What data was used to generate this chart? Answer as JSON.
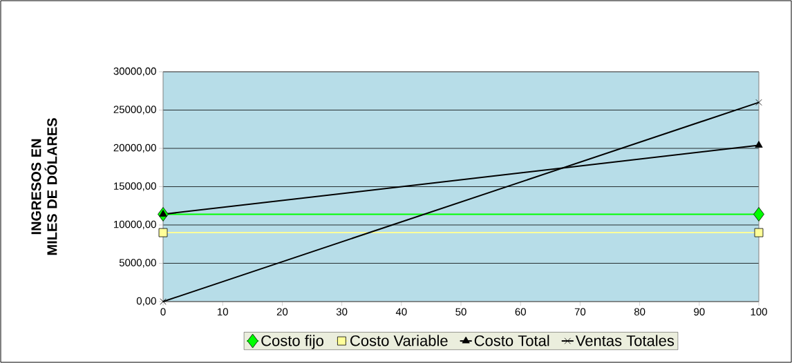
{
  "chart_data": {
    "type": "line",
    "ylabel": "INGRESOS EN MILES DE DÓLARES",
    "xlim": [
      0,
      100
    ],
    "xticks": [
      0,
      10,
      20,
      30,
      40,
      50,
      60,
      70,
      80,
      90,
      100
    ],
    "ylim": [
      0,
      30000
    ],
    "yticks": [
      {
        "value": 0,
        "label": "0,00"
      },
      {
        "value": 5000,
        "label": "5000,00"
      },
      {
        "value": 10000,
        "label": "10000,00"
      },
      {
        "value": 15000,
        "label": "15000,00"
      },
      {
        "value": 20000,
        "label": "20000,00"
      },
      {
        "value": 25000,
        "label": "25000,00"
      },
      {
        "value": 30000,
        "label": "30000,00"
      }
    ],
    "x": [
      0,
      100
    ],
    "grid": "y",
    "legend": "bottom",
    "line_style": "solid",
    "series": [
      {
        "name": "Costo fijo",
        "color": "#00ff00",
        "marker": "diamond",
        "values": [
          11400,
          11400
        ]
      },
      {
        "name": "Costo Variable",
        "color": "#ffff99",
        "marker": "square",
        "values": [
          9000,
          9000
        ]
      },
      {
        "name": "Costo Total",
        "color": "#000000",
        "marker": "triangle",
        "values": [
          11400,
          20400
        ]
      },
      {
        "name": "Ventas Totales",
        "color": "#000000",
        "marker": "cross",
        "values": [
          0,
          26000
        ]
      }
    ]
  }
}
